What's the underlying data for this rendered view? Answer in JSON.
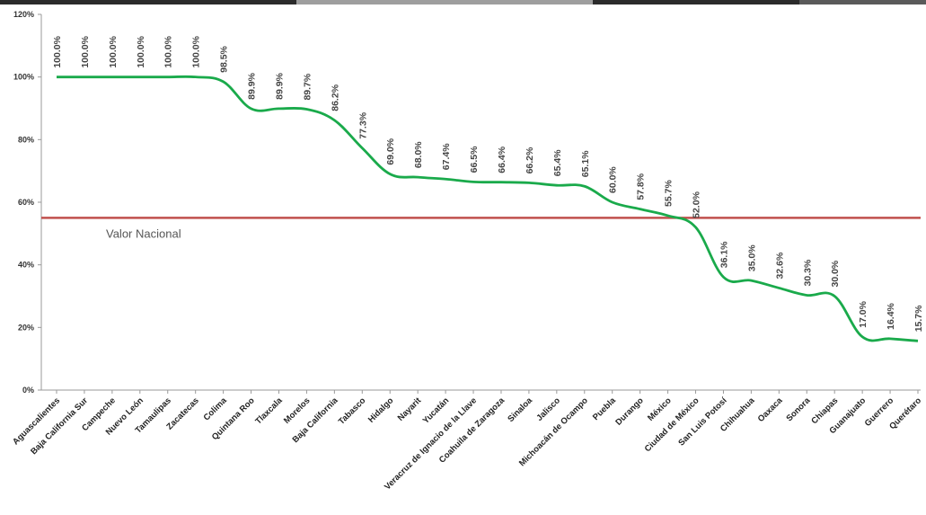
{
  "chart_data": {
    "type": "line",
    "categories": [
      "Aguascalientes",
      "Baja California Sur",
      "Campeche",
      "Nuevo León",
      "Tamaulipas",
      "Zacatecas",
      "Colima",
      "Quintana Roo",
      "Tlaxcala",
      "Morelos",
      "Baja California",
      "Tabasco",
      "Hidalgo",
      "Nayarit",
      "Yucatán",
      "Veracruz de Ignacio de la Llave",
      "Coahuila de Zaragoza",
      "Sinaloa",
      "Jalisco",
      "Michoacán de Ocampo",
      "Puebla",
      "Durango",
      "México",
      "Ciudad de México",
      "San Luis Potosí",
      "Chihuahua",
      "Oaxaca",
      "Sonora",
      "Chiapas",
      "Guanajuato",
      "Guerrero",
      "Querétaro"
    ],
    "series": [
      {
        "values": [
          100.0,
          100.0,
          100.0,
          100.0,
          100.0,
          100.0,
          98.5,
          89.9,
          89.9,
          89.7,
          86.2,
          77.3,
          69.0,
          68.0,
          67.4,
          66.5,
          66.4,
          66.2,
          65.4,
          65.1,
          60.0,
          57.8,
          55.7,
          52.0,
          36.1,
          35.0,
          32.6,
          30.3,
          30.0,
          17.0,
          16.4,
          15.7
        ],
        "labels": [
          "100.0%",
          "100.0%",
          "100.0%",
          "100.0%",
          "100.0%",
          "100.0%",
          "98.5%",
          "89.9%",
          "89.9%",
          "89.7%",
          "86.2%",
          "77.3%",
          "69.0%",
          "68.0%",
          "67.4%",
          "66.5%",
          "66.4%",
          "66.2%",
          "65.4%",
          "65.1%",
          "60.0%",
          "57.8%",
          "55.7%",
          "52.0%",
          "36.1%",
          "35.0%",
          "32.6%",
          "30.3%",
          "30.0%",
          "17.0%",
          "16.4%",
          "15.7%"
        ],
        "color": "#1aaa4b"
      }
    ],
    "reference_line": {
      "label": "Valor Nacional",
      "value": 55.0,
      "color": "#c0504d"
    },
    "yticks": [
      0,
      20,
      40,
      60,
      80,
      100,
      120
    ],
    "ytick_labels": [
      "0%",
      "20%",
      "40%",
      "60%",
      "80%",
      "100%",
      "120%"
    ],
    "ylim": [
      0,
      120
    ],
    "grid": false,
    "legend": "none",
    "top_bar_colors": [
      "#2b2b2b",
      "#9e9e9e",
      "#2b2b2b",
      "#5a5a5a"
    ]
  }
}
